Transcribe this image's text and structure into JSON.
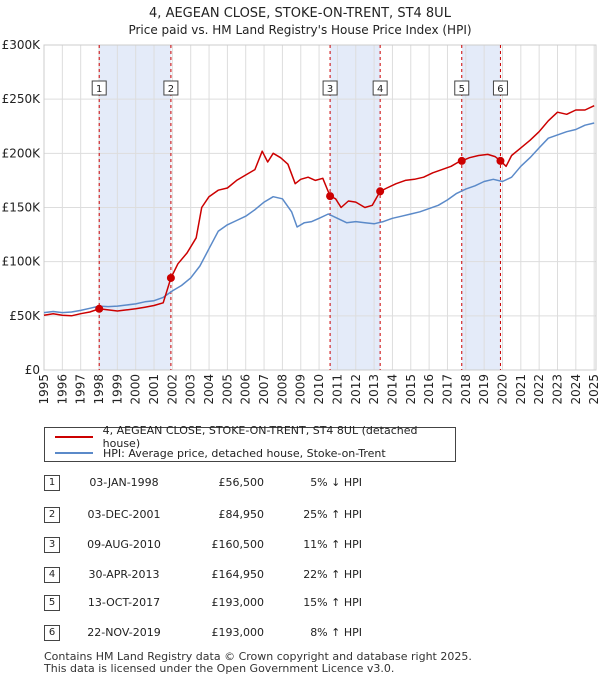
{
  "chart_data": {
    "type": "line",
    "title": "4, AEGEAN CLOSE, STOKE-ON-TRENT, ST4 8UL",
    "subtitle": "Price paid vs. HM Land Registry's House Price Index (HPI)",
    "xlim": [
      1995,
      2025.1
    ],
    "ylim": [
      0,
      300000
    ],
    "x_ticks": [
      1995,
      1996,
      1997,
      1998,
      1999,
      2000,
      2001,
      2002,
      2003,
      2004,
      2005,
      2006,
      2007,
      2008,
      2009,
      2010,
      2011,
      2012,
      2013,
      2014,
      2015,
      2016,
      2017,
      2018,
      2019,
      2020,
      2021,
      2022,
      2023,
      2024,
      2025
    ],
    "y_ticks": [
      {
        "value": 0,
        "label": "£0"
      },
      {
        "value": 50000,
        "label": "£50K"
      },
      {
        "value": 100000,
        "label": "£100K"
      },
      {
        "value": 150000,
        "label": "£150K"
      },
      {
        "value": 200000,
        "label": "£200K"
      },
      {
        "value": 250000,
        "label": "£250K"
      },
      {
        "value": 300000,
        "label": "£300K"
      }
    ],
    "shaded_periods": [
      [
        1998.01,
        2001.92
      ],
      [
        2010.6,
        2013.33
      ],
      [
        2017.78,
        2019.89
      ]
    ],
    "series": [
      {
        "name": "4, AEGEAN CLOSE, STOKE-ON-TRENT, ST4 8UL (detached house)",
        "color": "#cc0000",
        "points": [
          [
            1995.0,
            50500
          ],
          [
            1995.5,
            52000
          ],
          [
            1996.0,
            50500
          ],
          [
            1996.5,
            50000
          ],
          [
            1997.0,
            52000
          ],
          [
            1997.5,
            53500
          ],
          [
            1998.01,
            56500
          ],
          [
            1998.5,
            55500
          ],
          [
            1999.0,
            54500
          ],
          [
            1999.5,
            55500
          ],
          [
            2000.0,
            56500
          ],
          [
            2000.5,
            58000
          ],
          [
            2001.0,
            59500
          ],
          [
            2001.5,
            62000
          ],
          [
            2001.92,
            84950
          ],
          [
            2002.3,
            98000
          ],
          [
            2002.8,
            108000
          ],
          [
            2003.3,
            122000
          ],
          [
            2003.6,
            150000
          ],
          [
            2004.0,
            160000
          ],
          [
            2004.5,
            166000
          ],
          [
            2005.0,
            168000
          ],
          [
            2005.5,
            175000
          ],
          [
            2006.0,
            180000
          ],
          [
            2006.5,
            185000
          ],
          [
            2006.9,
            202000
          ],
          [
            2007.2,
            192000
          ],
          [
            2007.5,
            200000
          ],
          [
            2007.9,
            196000
          ],
          [
            2008.3,
            190000
          ],
          [
            2008.7,
            172000
          ],
          [
            2009.0,
            176000
          ],
          [
            2009.4,
            178000
          ],
          [
            2009.8,
            175000
          ],
          [
            2010.2,
            177000
          ],
          [
            2010.6,
            160500
          ],
          [
            2010.9,
            158000
          ],
          [
            2011.2,
            150000
          ],
          [
            2011.6,
            156000
          ],
          [
            2012.0,
            155000
          ],
          [
            2012.5,
            150000
          ],
          [
            2012.9,
            152000
          ],
          [
            2013.33,
            164950
          ],
          [
            2013.7,
            168000
          ],
          [
            2014.2,
            172000
          ],
          [
            2014.7,
            175000
          ],
          [
            2015.2,
            176000
          ],
          [
            2015.7,
            178000
          ],
          [
            2016.2,
            182000
          ],
          [
            2016.7,
            185000
          ],
          [
            2017.2,
            188000
          ],
          [
            2017.6,
            192000
          ],
          [
            2017.78,
            193000
          ],
          [
            2018.2,
            196000
          ],
          [
            2018.7,
            198000
          ],
          [
            2019.2,
            199000
          ],
          [
            2019.6,
            197000
          ],
          [
            2019.89,
            193000
          ],
          [
            2020.2,
            188000
          ],
          [
            2020.5,
            198000
          ],
          [
            2021.0,
            205000
          ],
          [
            2021.5,
            212000
          ],
          [
            2022.0,
            220000
          ],
          [
            2022.5,
            230000
          ],
          [
            2023.0,
            238000
          ],
          [
            2023.5,
            236000
          ],
          [
            2024.0,
            240000
          ],
          [
            2024.5,
            240000
          ],
          [
            2025.0,
            244000
          ]
        ]
      },
      {
        "name": "HPI: Average price, detached house, Stoke-on-Trent",
        "color": "#5b8ac9",
        "points": [
          [
            1995.0,
            53000
          ],
          [
            1995.5,
            54000
          ],
          [
            1996.0,
            53000
          ],
          [
            1996.5,
            53500
          ],
          [
            1997.0,
            55000
          ],
          [
            1997.5,
            57000
          ],
          [
            1998.0,
            59000
          ],
          [
            1998.5,
            58500
          ],
          [
            1999.0,
            59000
          ],
          [
            1999.5,
            60000
          ],
          [
            2000.0,
            61000
          ],
          [
            2000.5,
            63000
          ],
          [
            2001.0,
            64000
          ],
          [
            2001.5,
            67000
          ],
          [
            2002.0,
            73000
          ],
          [
            2002.5,
            78000
          ],
          [
            2003.0,
            85000
          ],
          [
            2003.5,
            96000
          ],
          [
            2004.0,
            112000
          ],
          [
            2004.5,
            128000
          ],
          [
            2005.0,
            134000
          ],
          [
            2005.5,
            138000
          ],
          [
            2006.0,
            142000
          ],
          [
            2006.5,
            148000
          ],
          [
            2007.0,
            155000
          ],
          [
            2007.5,
            160000
          ],
          [
            2008.0,
            158000
          ],
          [
            2008.5,
            146000
          ],
          [
            2008.8,
            132000
          ],
          [
            2009.2,
            136000
          ],
          [
            2009.6,
            137000
          ],
          [
            2010.0,
            140000
          ],
          [
            2010.5,
            144000
          ],
          [
            2011.0,
            140000
          ],
          [
            2011.5,
            136000
          ],
          [
            2012.0,
            137000
          ],
          [
            2012.5,
            136000
          ],
          [
            2013.0,
            135000
          ],
          [
            2013.5,
            137000
          ],
          [
            2014.0,
            140000
          ],
          [
            2014.5,
            142000
          ],
          [
            2015.0,
            144000
          ],
          [
            2015.5,
            146000
          ],
          [
            2016.0,
            149000
          ],
          [
            2016.5,
            152000
          ],
          [
            2017.0,
            157000
          ],
          [
            2017.5,
            163000
          ],
          [
            2018.0,
            167000
          ],
          [
            2018.5,
            170000
          ],
          [
            2019.0,
            174000
          ],
          [
            2019.5,
            176000
          ],
          [
            2020.0,
            174000
          ],
          [
            2020.5,
            178000
          ],
          [
            2021.0,
            188000
          ],
          [
            2021.5,
            196000
          ],
          [
            2022.0,
            205000
          ],
          [
            2022.5,
            214000
          ],
          [
            2023.0,
            217000
          ],
          [
            2023.5,
            220000
          ],
          [
            2024.0,
            222000
          ],
          [
            2024.5,
            226000
          ],
          [
            2025.0,
            228000
          ]
        ]
      }
    ],
    "sales": [
      {
        "id": "1",
        "x": 1998.01,
        "price": 56500
      },
      {
        "id": "2",
        "x": 2001.92,
        "price": 84950
      },
      {
        "id": "3",
        "x": 2010.6,
        "price": 160500
      },
      {
        "id": "4",
        "x": 2013.33,
        "price": 164950
      },
      {
        "id": "5",
        "x": 2017.78,
        "price": 193000
      },
      {
        "id": "6",
        "x": 2019.89,
        "price": 193000
      }
    ]
  },
  "legend": {
    "property_label": "4, AEGEAN CLOSE, STOKE-ON-TRENT, ST4 8UL (detached house)",
    "hpi_label": "HPI: Average price, detached house, Stoke-on-Trent",
    "property_color": "#cc0000",
    "hpi_color": "#5b8ac9"
  },
  "transactions": [
    {
      "num": "1",
      "date": "03-JAN-1998",
      "price": "£56,500",
      "hpi": "5% ↓ HPI"
    },
    {
      "num": "2",
      "date": "03-DEC-2001",
      "price": "£84,950",
      "hpi": "25% ↑ HPI"
    },
    {
      "num": "3",
      "date": "09-AUG-2010",
      "price": "£160,500",
      "hpi": "11% ↑ HPI"
    },
    {
      "num": "4",
      "date": "30-APR-2013",
      "price": "£164,950",
      "hpi": "22% ↑ HPI"
    },
    {
      "num": "5",
      "date": "13-OCT-2017",
      "price": "£193,000",
      "hpi": "15% ↑ HPI"
    },
    {
      "num": "6",
      "date": "22-NOV-2019",
      "price": "£193,000",
      "hpi": "8% ↑ HPI"
    }
  ],
  "footer": {
    "line1": "Contains HM Land Registry data © Crown copyright and database right 2025.",
    "line2": "This data is licensed under the Open Government Licence v3.0."
  }
}
